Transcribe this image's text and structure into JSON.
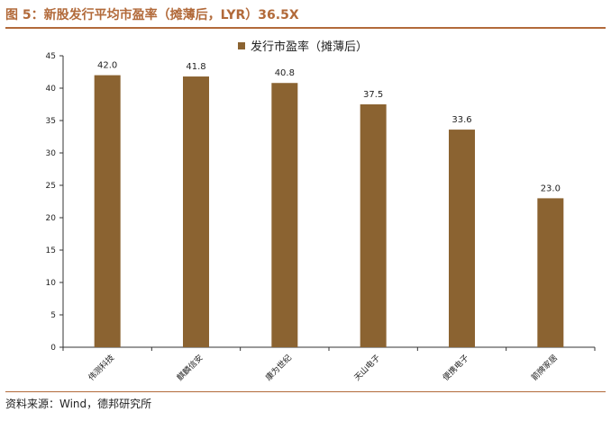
{
  "figure": {
    "title": "图 5：新股发行平均市盈率（摊薄后，LYR）36.5X",
    "source": "资料来源：Wind，德邦研究所"
  },
  "colors": {
    "bar": "#8b6331",
    "accent": "#b26a3a",
    "axis": "#333333"
  },
  "chart_data": {
    "type": "bar",
    "categories": [
      "伟测科技",
      "麒麟信安",
      "康为世纪",
      "天山电子",
      "便携电子",
      "箭牌家居"
    ],
    "series": [
      {
        "name": "发行市盈率（摊薄后）",
        "values": [
          42.0,
          41.8,
          40.8,
          37.5,
          33.6,
          23.0
        ]
      }
    ],
    "data_labels": [
      "42.0",
      "41.8",
      "40.8",
      "37.5",
      "33.6",
      "23.0"
    ],
    "ylim": [
      0,
      45
    ],
    "yticks": [
      0,
      5,
      10,
      15,
      20,
      25,
      30,
      35,
      40,
      45
    ],
    "legend_position": "top-center",
    "grid": false
  }
}
